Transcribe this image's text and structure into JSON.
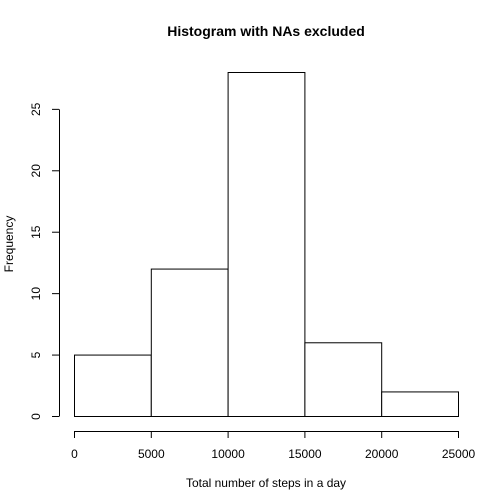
{
  "chart_data": {
    "type": "bar",
    "title": "Histogram with NAs excluded",
    "xlabel": "Total number of steps in a day",
    "ylabel": "Frequency",
    "bins": [
      {
        "from": 0,
        "to": 5000,
        "count": 5
      },
      {
        "from": 5000,
        "to": 10000,
        "count": 12
      },
      {
        "from": 10000,
        "to": 15000,
        "count": 28
      },
      {
        "from": 15000,
        "to": 20000,
        "count": 6
      },
      {
        "from": 20000,
        "to": 25000,
        "count": 2
      }
    ],
    "xlim": [
      0,
      25000
    ],
    "ylim": [
      0,
      28
    ],
    "x_ticks": [
      0,
      5000,
      10000,
      15000,
      20000,
      25000
    ],
    "x_tick_labels": [
      "0",
      "5000",
      "10000",
      "15000",
      "20000",
      "25000"
    ],
    "y_ticks": [
      0,
      5,
      10,
      15,
      20,
      25
    ],
    "y_tick_labels": [
      "0",
      "5",
      "10",
      "15",
      "20",
      "25"
    ],
    "grid": false,
    "legend": "none"
  }
}
